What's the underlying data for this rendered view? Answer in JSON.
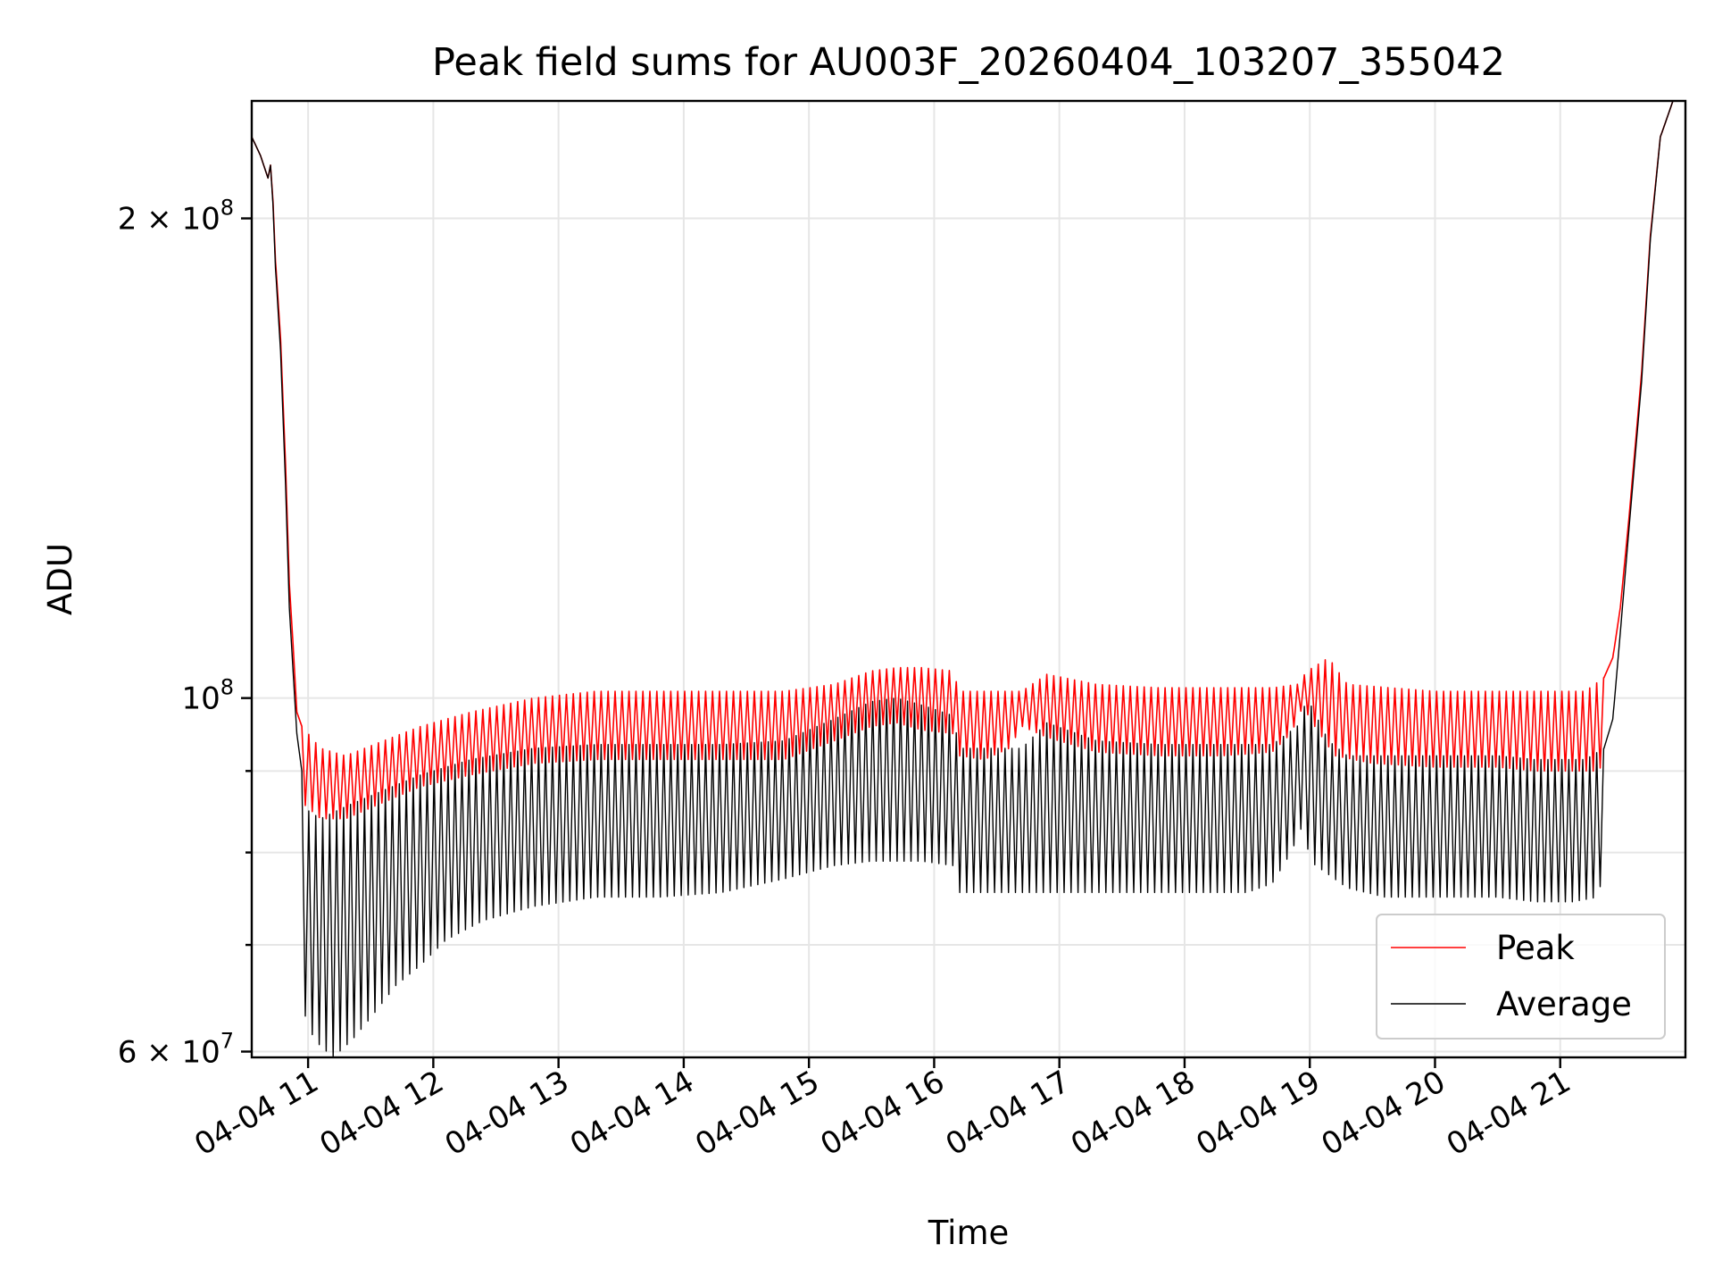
{
  "chart_data": {
    "type": "line",
    "title": "Peak field sums for AU003F_20260404_103207_355042",
    "xlabel": "Time",
    "ylabel": "ADU",
    "yscale": "log",
    "ylim": [
      59500000,
      237000000
    ],
    "xlim": [
      10.55,
      22.0
    ],
    "x_unit": "hour of 2026-04-04",
    "x_ticks": [
      {
        "value": 11,
        "label": "04-04 11"
      },
      {
        "value": 12,
        "label": "04-04 12"
      },
      {
        "value": 13,
        "label": "04-04 13"
      },
      {
        "value": 14,
        "label": "04-04 14"
      },
      {
        "value": 15,
        "label": "04-04 15"
      },
      {
        "value": 16,
        "label": "04-04 16"
      },
      {
        "value": 17,
        "label": "04-04 17"
      },
      {
        "value": 18,
        "label": "04-04 18"
      },
      {
        "value": 19,
        "label": "04-04 19"
      },
      {
        "value": 20,
        "label": "04-04 20"
      },
      {
        "value": 21,
        "label": "04-04 21"
      }
    ],
    "y_ticks": [
      {
        "value": 60000000,
        "label": "6 × 10⁷",
        "mant": "6",
        "exp": "7"
      },
      {
        "value": 100000000,
        "label": "10⁸",
        "mant": "",
        "exp": "8"
      },
      {
        "value": 200000000,
        "label": "2 × 10⁸",
        "mant": "2",
        "exp": "8"
      }
    ],
    "y_minor_ticks": [
      70000000,
      80000000,
      90000000
    ],
    "grid": true,
    "legend": {
      "position": "lower-right",
      "entries": [
        {
          "name": "Peak",
          "color": "#ff0000"
        },
        {
          "name": "Average",
          "color": "#000000"
        }
      ]
    },
    "series": [
      {
        "name": "Peak",
        "color": "#ff0000",
        "oscillation_period_hours": 0.0556,
        "upper_envelope": {
          "x": [
            10.55,
            10.62,
            10.68,
            10.7,
            10.72,
            10.74,
            10.78,
            10.82,
            10.85,
            10.88,
            10.91,
            10.95,
            11.0,
            11.1,
            11.3,
            11.6,
            11.9,
            12.3,
            12.8,
            13.3,
            13.8,
            14.3,
            14.8,
            15.2,
            15.5,
            15.7,
            15.9,
            16.15,
            16.2,
            16.7,
            16.9,
            17.3,
            17.8,
            18.3,
            18.7,
            18.9,
            18.98,
            19.15,
            19.3,
            20.0,
            20.5,
            20.8,
            21.1,
            21.2,
            21.35,
            21.42,
            21.48,
            21.55,
            21.65,
            21.72,
            21.8,
            21.9,
            22.0
          ],
          "y": [
            225000000,
            219000000,
            212000000,
            216000000,
            205000000,
            188000000,
            168000000,
            140000000,
            118000000,
            108000000,
            98000000,
            96000000,
            95000000,
            93000000,
            92000000,
            94000000,
            96000000,
            98000000,
            100000000,
            101000000,
            101000000,
            101000000,
            101000000,
            102000000,
            104000000,
            104500000,
            104500000,
            104000000,
            101000000,
            101000000,
            103500000,
            102000000,
            101500000,
            101500000,
            101500000,
            102000000,
            104000000,
            106000000,
            102000000,
            101000000,
            101000000,
            101000000,
            101000000,
            101000000,
            103000000,
            106000000,
            114000000,
            130000000,
            160000000,
            195000000,
            225000000,
            237000000,
            237000000
          ]
        },
        "lower_envelope": {
          "x": [
            10.95,
            11.1,
            11.3,
            11.6,
            11.9,
            12.3,
            12.8,
            13.3,
            13.8,
            14.3,
            14.8,
            15.2,
            15.5,
            15.7,
            15.9,
            16.15,
            16.2,
            16.4,
            16.6,
            16.7,
            16.9,
            17.3,
            17.8,
            18.3,
            18.7,
            18.85,
            18.95,
            19.0,
            19.2,
            19.5,
            20.0,
            20.5,
            20.8,
            21.1,
            21.3,
            21.35
          ],
          "y": [
            86000000,
            84000000,
            84000000,
            86000000,
            88000000,
            89500000,
            91000000,
            91500000,
            91500000,
            91500000,
            91500000,
            94000000,
            96000000,
            96500000,
            95500000,
            95000000,
            92000000,
            91500000,
            93000000,
            96000000,
            94500000,
            92500000,
            92000000,
            92000000,
            92500000,
            95000000,
            99000000,
            97000000,
            92000000,
            91000000,
            90500000,
            90500000,
            90000000,
            90000000,
            90000000,
            91000000
          ]
        }
      },
      {
        "name": "Average",
        "color": "#000000",
        "oscillation_period_hours": 0.0556,
        "upper_envelope": {
          "x": [
            10.55,
            10.62,
            10.68,
            10.7,
            10.72,
            10.74,
            10.78,
            10.82,
            10.85,
            10.88,
            10.91,
            10.95,
            11.0,
            11.1,
            11.3,
            11.6,
            11.9,
            12.3,
            12.8,
            13.3,
            13.8,
            14.3,
            14.8,
            15.2,
            15.5,
            15.7,
            15.9,
            16.15,
            16.2,
            16.7,
            16.9,
            17.3,
            17.8,
            18.3,
            18.7,
            18.9,
            18.98,
            19.15,
            19.3,
            20.0,
            20.5,
            20.8,
            21.1,
            21.2,
            21.35,
            21.42,
            21.48,
            21.55,
            21.65,
            21.72,
            21.8,
            21.9,
            22.0
          ],
          "y": [
            225000000,
            219000000,
            212000000,
            216000000,
            204000000,
            186000000,
            165000000,
            136000000,
            114000000,
            104000000,
            95000000,
            90000000,
            85000000,
            84000000,
            85500000,
            87500000,
            89500000,
            91500000,
            93000000,
            93500000,
            93500000,
            93500000,
            94000000,
            97000000,
            99500000,
            100000000,
            99000000,
            97500000,
            93000000,
            93000000,
            96500000,
            94000000,
            93500000,
            93500000,
            93500000,
            96000000,
            100000000,
            94000000,
            92000000,
            92000000,
            92000000,
            91500000,
            91500000,
            91500000,
            93000000,
            97000000,
            110000000,
            128000000,
            158000000,
            194000000,
            225000000,
            237000000,
            237000000
          ]
        },
        "lower_envelope": {
          "x": [
            10.95,
            11.05,
            11.2,
            11.35,
            11.5,
            11.7,
            11.9,
            12.1,
            12.4,
            12.8,
            13.3,
            13.8,
            14.3,
            14.8,
            15.2,
            15.5,
            15.7,
            15.9,
            16.15,
            16.2,
            16.6,
            16.7,
            17.0,
            17.5,
            18.0,
            18.5,
            18.7,
            18.85,
            18.95,
            19.0,
            19.3,
            19.6,
            20.0,
            20.5,
            20.8,
            21.1,
            21.3,
            21.35
          ],
          "y": [
            64000000,
            61000000,
            59500000,
            61000000,
            63000000,
            66000000,
            68000000,
            70500000,
            72500000,
            74000000,
            75000000,
            75000000,
            75500000,
            77000000,
            78500000,
            79000000,
            79000000,
            79000000,
            78500000,
            75500000,
            75500000,
            75500000,
            75500000,
            75500000,
            75500000,
            75500000,
            76500000,
            80000000,
            83500000,
            79000000,
            76000000,
            75000000,
            75000000,
            75000000,
            74500000,
            74500000,
            75000000,
            78000000
          ]
        }
      }
    ]
  }
}
